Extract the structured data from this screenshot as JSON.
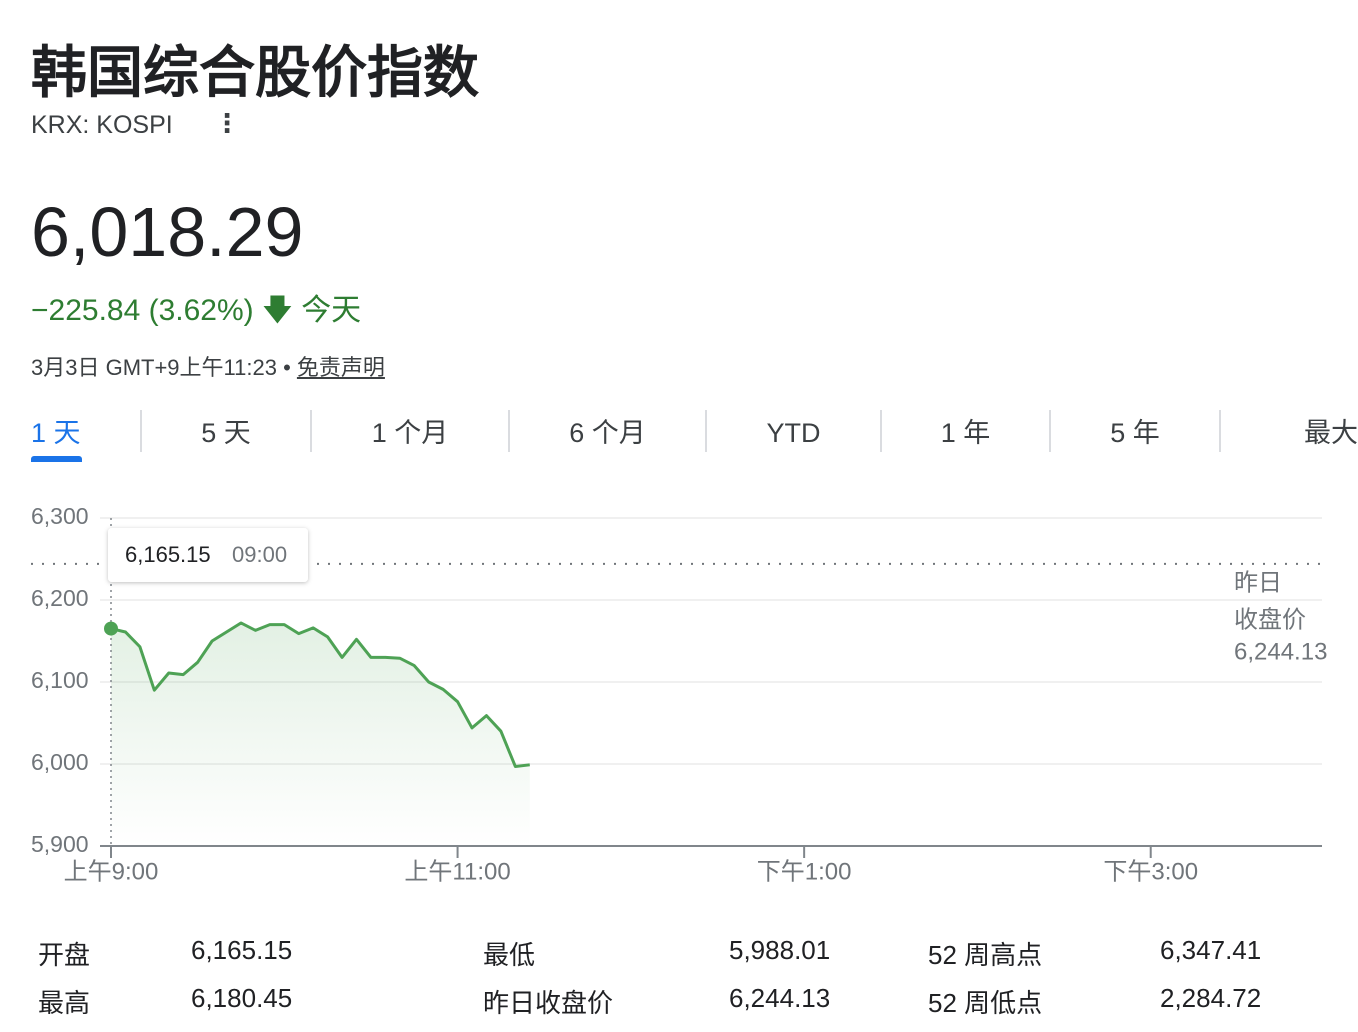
{
  "header": {
    "title": "韩国综合股价指数",
    "ticker": "KRX: KOSPI"
  },
  "quote": {
    "price": "6,018.29",
    "change": "−225.84 (3.62%)",
    "period": "今天",
    "timestamp": "3月3日 GMT+9上午11:23 •",
    "disclaimer": "免责声明"
  },
  "tabs": [
    "1 天",
    "5 天",
    "1 个月",
    "6 个月",
    "YTD",
    "1 年",
    "5 年",
    "最大"
  ],
  "chart_data": {
    "type": "line",
    "x": [
      540,
      545,
      550,
      555,
      560,
      565,
      570,
      575,
      580,
      585,
      590,
      595,
      600,
      605,
      610,
      615,
      620,
      625,
      630,
      635,
      640,
      645,
      650,
      655,
      660,
      665,
      670,
      675,
      680,
      685
    ],
    "series": [
      {
        "name": "KOSPI",
        "color": "#4ea255",
        "values": [
          6165.15,
          6161,
          6143,
          6090,
          6111,
          6109,
          6124,
          6150,
          6161,
          6172,
          6163,
          6170,
          6170,
          6159,
          6166,
          6155,
          6130,
          6152,
          6130,
          6130,
          6129,
          6120,
          6100,
          6091,
          6076,
          6044,
          6059,
          6040,
          5997,
          5999
        ]
      }
    ],
    "xlim": [
      540,
      960
    ],
    "xticks": [
      {
        "value": 540,
        "label": "上午9:00"
      },
      {
        "value": 660,
        "label": "上午11:00"
      },
      {
        "value": 780,
        "label": "下午1:00"
      },
      {
        "value": 900,
        "label": "下午3:00"
      }
    ],
    "ylim": [
      5900,
      6300
    ],
    "yticks": [
      {
        "value": 5900,
        "label": "5,900"
      },
      {
        "value": 6000,
        "label": "6,000"
      },
      {
        "value": 6100,
        "label": "6,100"
      },
      {
        "value": 6200,
        "label": "6,200"
      },
      {
        "value": 6300,
        "label": "6,300"
      }
    ],
    "grid": true,
    "reference": {
      "value": 6244.13,
      "label": [
        "昨日",
        "收盘价"
      ],
      "value_label": "6,244.13"
    },
    "tooltip": {
      "value_label": "6,165.15",
      "time": "09:00"
    }
  },
  "stats": {
    "rows": [
      [
        "开盘",
        "6,165.15",
        "最低",
        "5,988.01",
        "52 周高点",
        "6,347.41"
      ],
      [
        "最高",
        "6,180.45",
        "昨日收盘价",
        "6,244.13",
        "52 周低点",
        "2,284.72"
      ]
    ]
  }
}
